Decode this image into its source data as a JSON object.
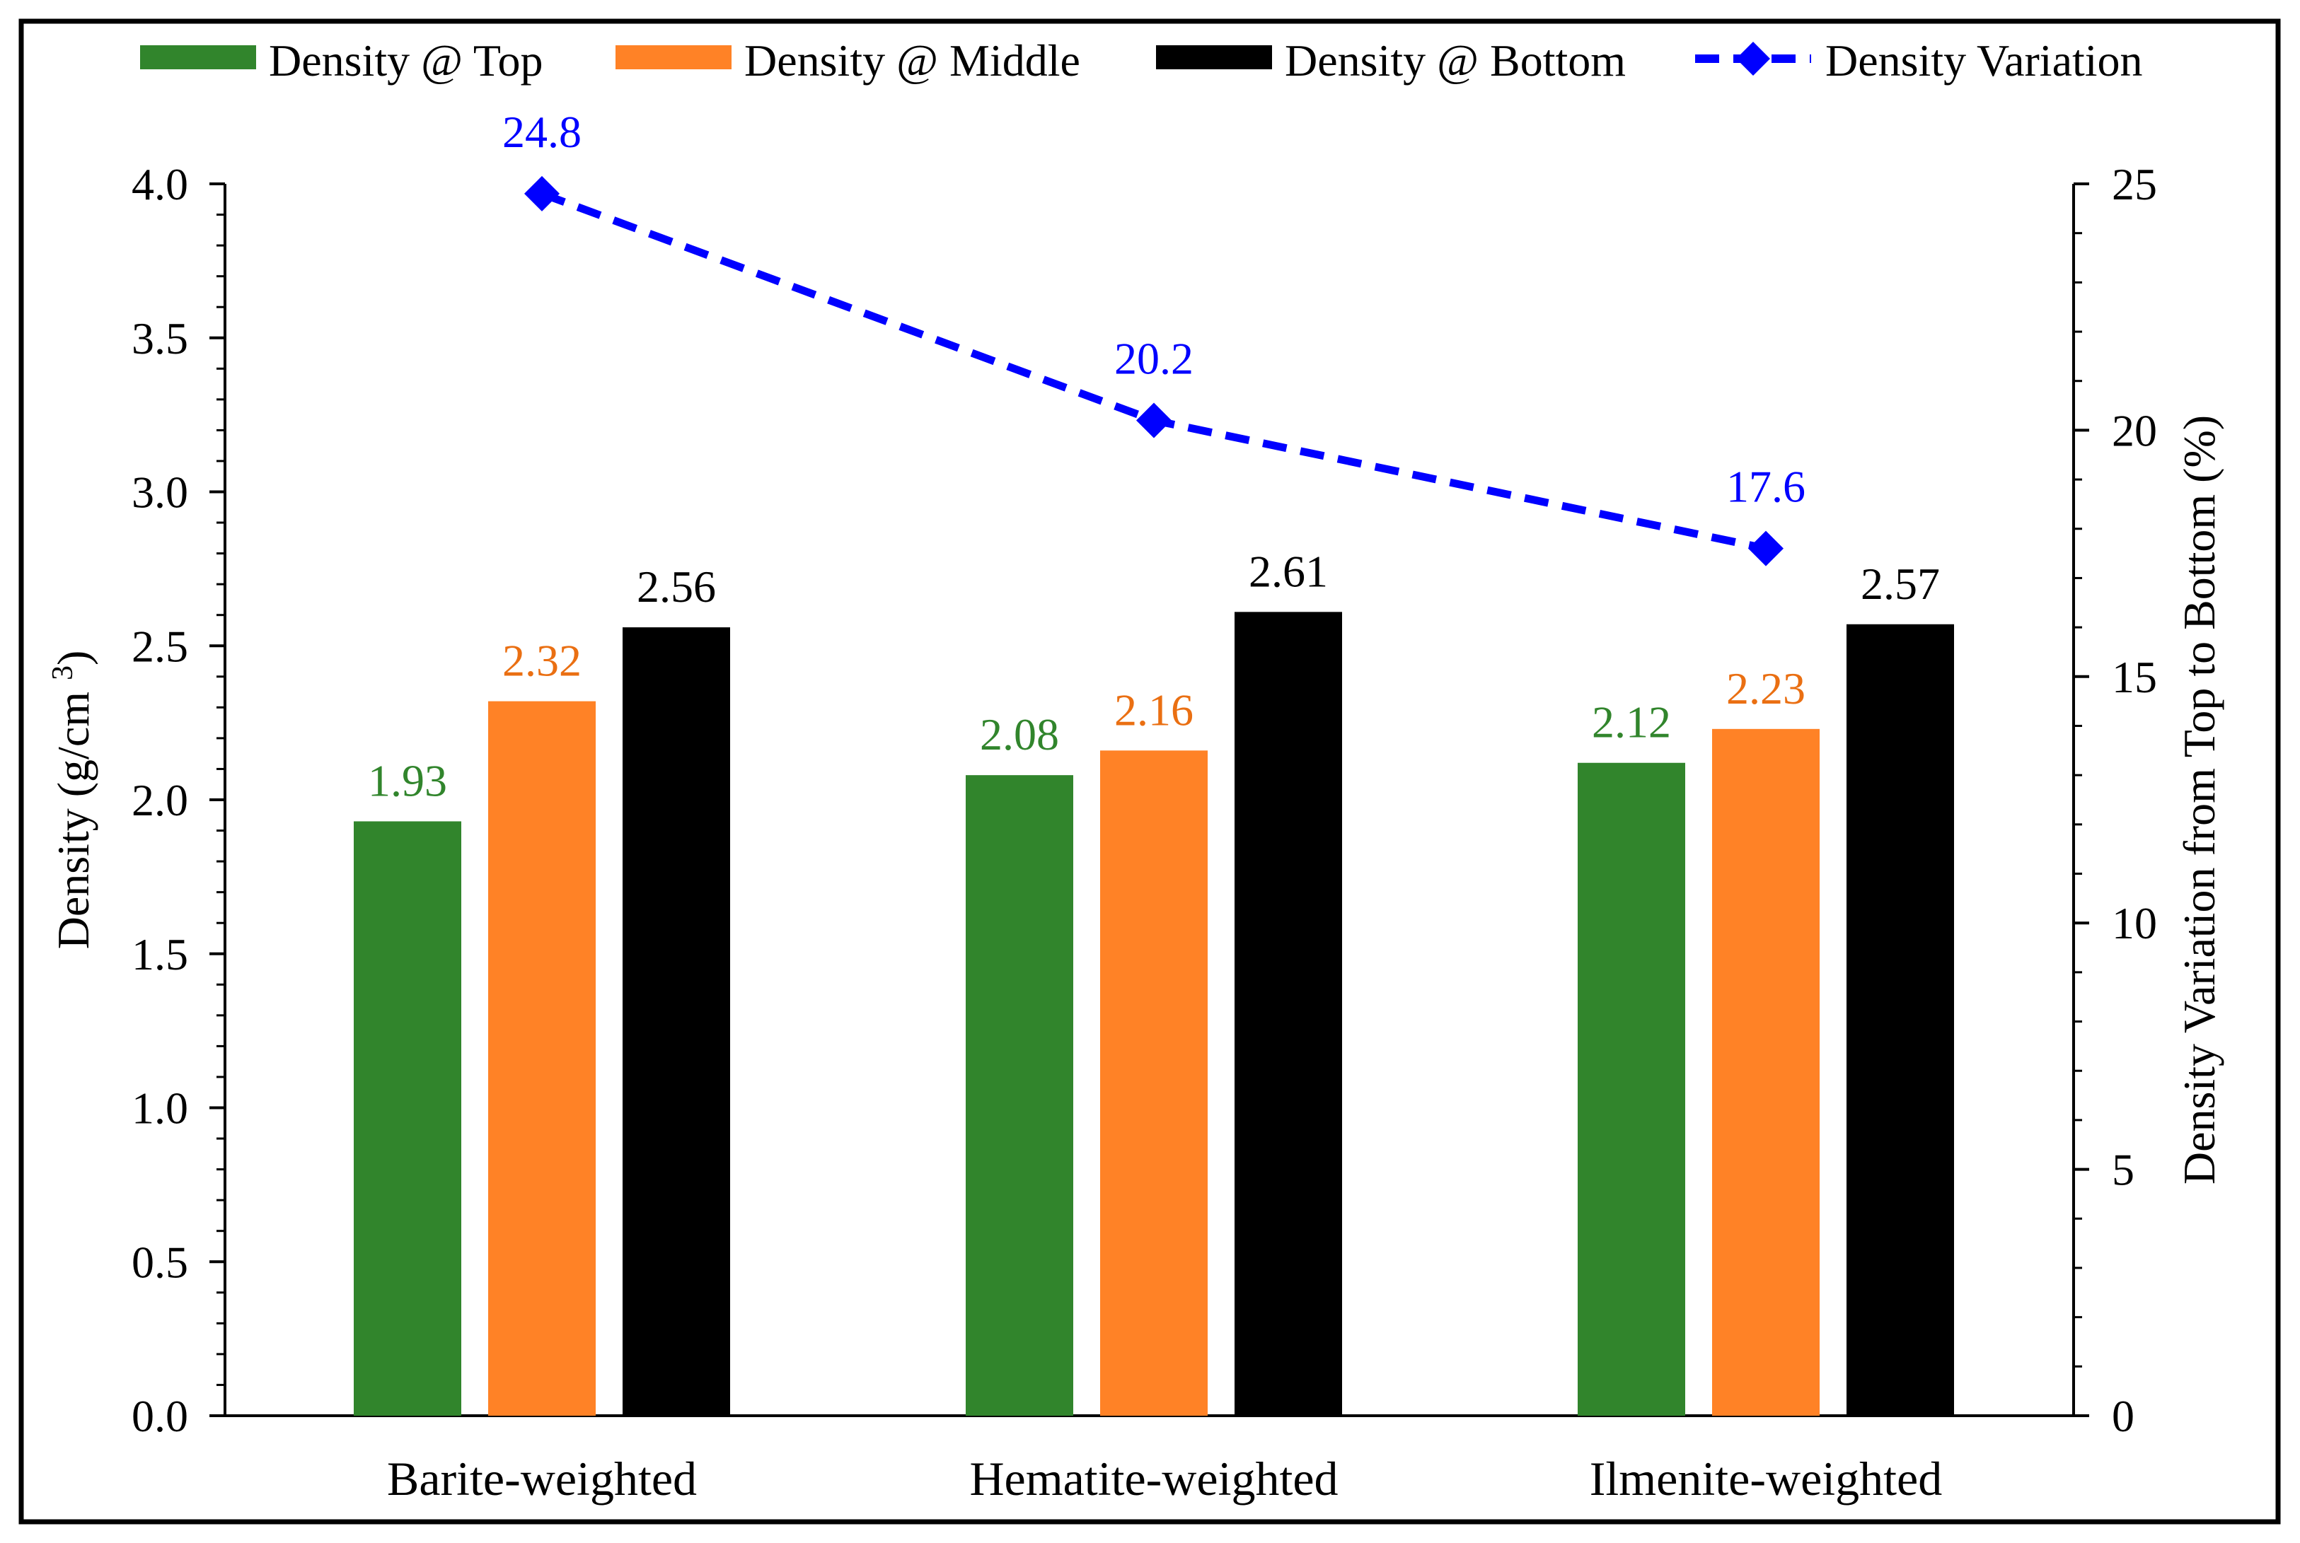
{
  "chart_data": {
    "type": "bar",
    "categories": [
      "Barite-weighted",
      "Hematite-weighted",
      "Ilmenite-weighted"
    ],
    "series": [
      {
        "name": "Density @ Top",
        "type": "bar",
        "axis": "left",
        "color": "#31852c",
        "label_color": "#31852c",
        "values": [
          1.93,
          2.08,
          2.12
        ]
      },
      {
        "name": "Density @ Middle",
        "type": "bar",
        "axis": "left",
        "color": "#ff8226",
        "label_color": "#ea6f12",
        "values": [
          2.32,
          2.16,
          2.23
        ]
      },
      {
        "name": "Density @ Bottom",
        "type": "bar",
        "axis": "left",
        "color": "#000000",
        "label_color": "#000000",
        "values": [
          2.56,
          2.61,
          2.57
        ]
      },
      {
        "name": "Density Variation",
        "type": "line",
        "axis": "right",
        "style": "dashed",
        "marker": "diamond",
        "color": "#0000ff",
        "label_color": "#0000ff",
        "values": [
          24.8,
          20.2,
          17.6
        ]
      }
    ],
    "ylabel_left": "Density (g/cm³)",
    "ylabel_right": "Density Variation from Top to Bottom (%)",
    "ylim_left": [
      0,
      4
    ],
    "ylim_right": [
      0,
      25
    ],
    "yticks_left": [
      "0.0",
      "0.5",
      "1.0",
      "1.5",
      "2.0",
      "2.5",
      "3.0",
      "3.5",
      "4.0"
    ],
    "yticks_right": [
      "0",
      "5",
      "10",
      "15",
      "20",
      "25"
    ],
    "grid": false,
    "legend_position": "top"
  }
}
